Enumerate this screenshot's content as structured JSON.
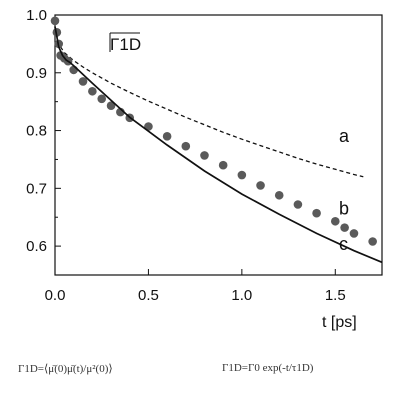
{
  "chart_data": {
    "type": "line",
    "panel_label": "Γ1D",
    "xlabel": "t [ps]",
    "ylabel": "",
    "xlim": [
      0.0,
      1.75
    ],
    "ylim": [
      0.55,
      1.0
    ],
    "x_ticks": [
      0.0,
      0.5,
      1.0,
      1.5
    ],
    "x_tick_labels": [
      "0.0",
      "0.5",
      "1.0",
      "1.5"
    ],
    "y_ticks": [
      0.6,
      0.7,
      0.8,
      0.9,
      1.0
    ],
    "y_tick_labels": [
      "0.6",
      "0.7",
      "0.8",
      "0.9",
      "1.0"
    ],
    "grid": false,
    "series": [
      {
        "name": "a",
        "style": "dashed",
        "x": [
          0.0,
          0.02,
          0.05,
          0.1,
          0.15,
          0.2,
          0.3,
          0.4,
          0.5,
          0.6,
          0.7,
          0.8,
          0.9,
          1.0,
          1.1,
          1.2,
          1.3,
          1.4,
          1.5,
          1.6,
          1.65
        ],
        "y": [
          0.98,
          0.95,
          0.935,
          0.921,
          0.91,
          0.9,
          0.882,
          0.866,
          0.851,
          0.837,
          0.823,
          0.81,
          0.797,
          0.785,
          0.774,
          0.763,
          0.752,
          0.742,
          0.733,
          0.724,
          0.72
        ]
      },
      {
        "name": "b",
        "style": "markers",
        "x": [
          0.0,
          0.01,
          0.02,
          0.03,
          0.05,
          0.07,
          0.1,
          0.15,
          0.2,
          0.25,
          0.3,
          0.35,
          0.4,
          0.5,
          0.6,
          0.7,
          0.8,
          0.9,
          1.0,
          1.1,
          1.2,
          1.3,
          1.4,
          1.5,
          1.55,
          1.6,
          1.7
        ],
        "y": [
          0.99,
          0.97,
          0.95,
          0.93,
          0.925,
          0.92,
          0.905,
          0.885,
          0.868,
          0.855,
          0.843,
          0.832,
          0.822,
          0.807,
          0.79,
          0.773,
          0.757,
          0.74,
          0.723,
          0.705,
          0.688,
          0.672,
          0.657,
          0.643,
          0.632,
          0.622,
          0.608
        ]
      },
      {
        "name": "c",
        "style": "solid",
        "x": [
          0.0,
          0.02,
          0.04,
          0.06,
          0.08,
          0.1,
          0.2,
          0.4,
          0.6,
          0.8,
          1.0,
          1.2,
          1.4,
          1.6,
          1.75
        ],
        "y": [
          0.98,
          0.945,
          0.93,
          0.922,
          0.918,
          0.912,
          0.882,
          0.823,
          0.775,
          0.73,
          0.69,
          0.655,
          0.622,
          0.592,
          0.572
        ]
      }
    ]
  },
  "formulas": {
    "left": "Γ1D=⟨μ̄(0)μ̄(t)/μ²(0)⟩",
    "right": "Γ1D=Γ0 exp(-t/τ1D)"
  }
}
